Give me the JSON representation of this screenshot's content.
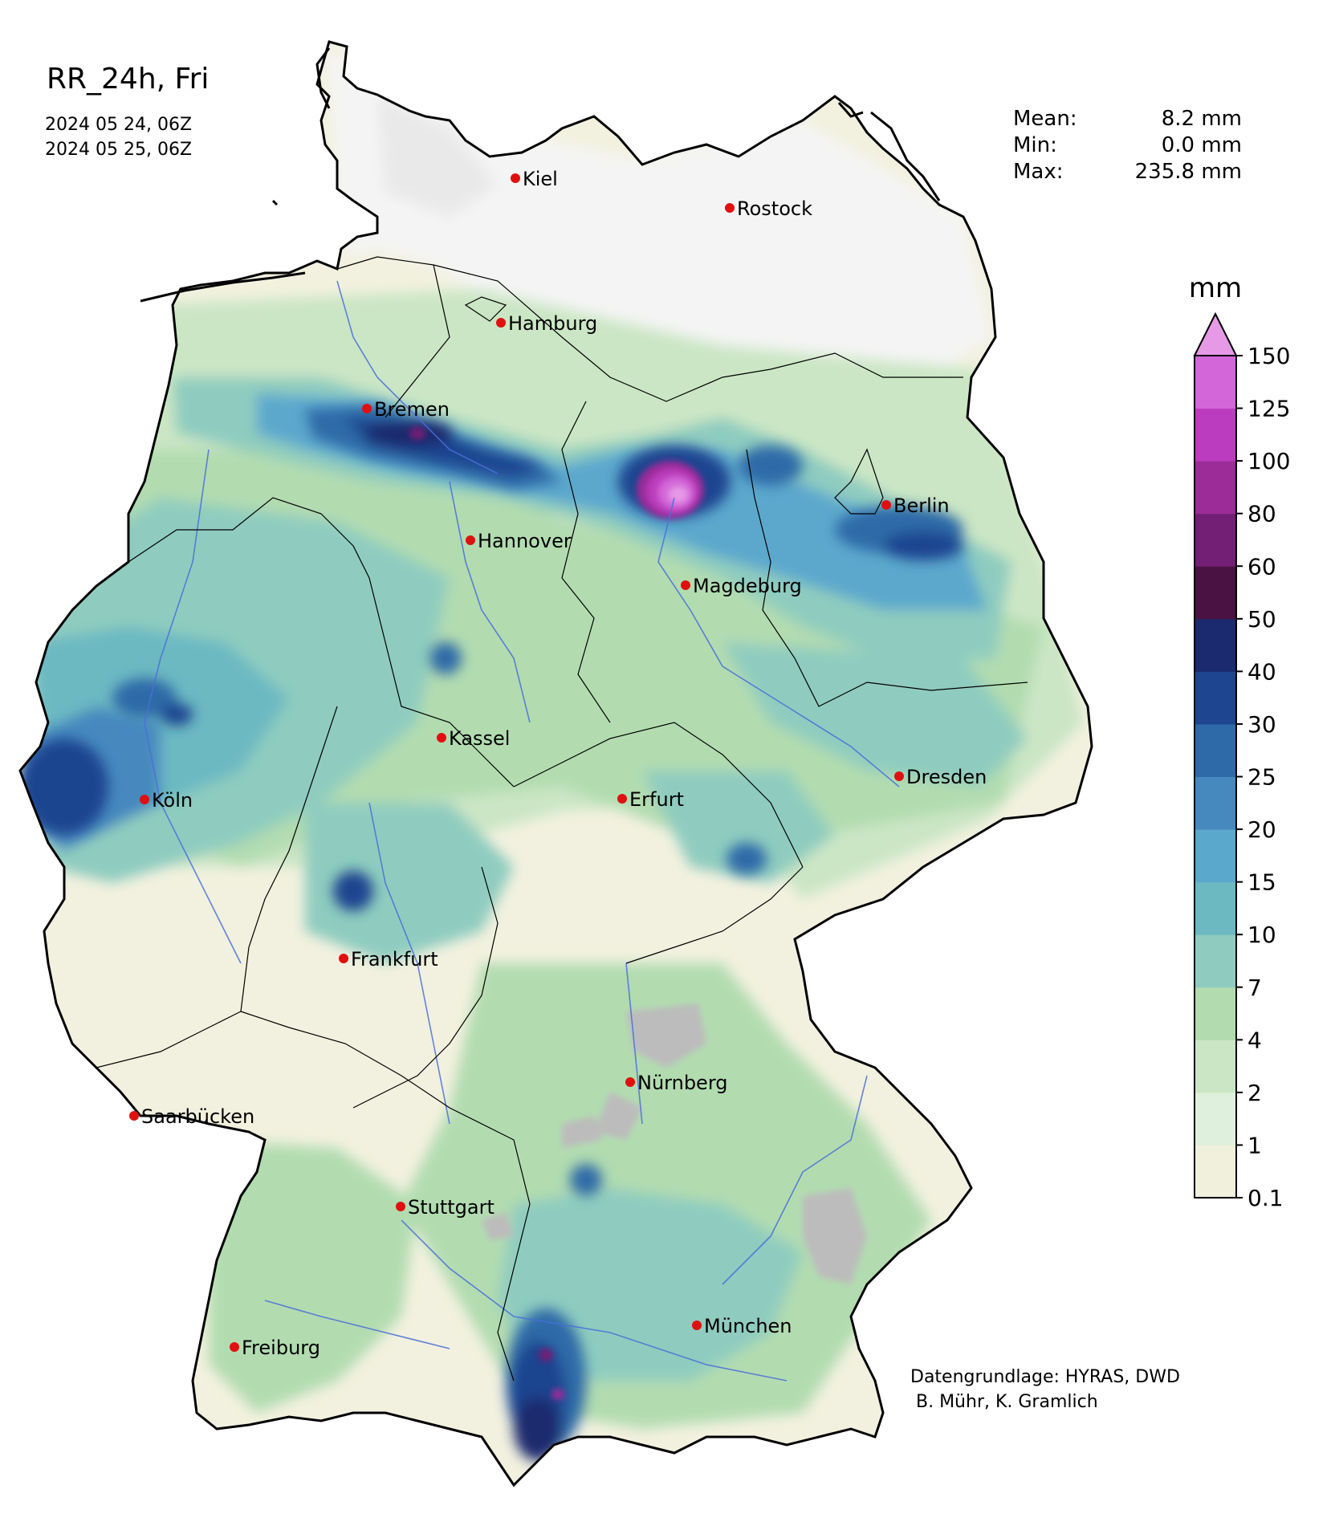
{
  "header": {
    "title": "RR_24h, Fri",
    "start_time": "2024 05 24, 06Z",
    "end_time": "2024 05 25, 06Z"
  },
  "stats": {
    "mean_label": "Mean:",
    "mean_value": "8.2 mm",
    "min_label": "Min:",
    "min_value": "0.0 mm",
    "max_label": "Max:",
    "max_value": "235.8 mm"
  },
  "legend": {
    "unit": "mm",
    "levels": [
      "0.1",
      "1",
      "2",
      "4",
      "7",
      "10",
      "15",
      "20",
      "25",
      "30",
      "40",
      "50",
      "60",
      "80",
      "100",
      "125",
      "150"
    ],
    "colors": [
      "#f0f0dd",
      "#dff0dc",
      "#cbe6c4",
      "#b2dcb0",
      "#8fccbf",
      "#6cb9c2",
      "#5ba8cd",
      "#4689bf",
      "#2f6aa8",
      "#1d4590",
      "#1b2a6e",
      "#4a1242",
      "#731f75",
      "#9b2c98",
      "#bb3cbe",
      "#d367d9",
      "#e69ae6"
    ]
  },
  "cities": [
    {
      "name": "Kiel"
    },
    {
      "name": "Rostock"
    },
    {
      "name": "Hamburg"
    },
    {
      "name": "Bremen"
    },
    {
      "name": "Berlin"
    },
    {
      "name": "Hannover"
    },
    {
      "name": "Magdeburg"
    },
    {
      "name": "Kassel"
    },
    {
      "name": "Dresden"
    },
    {
      "name": "Köln"
    },
    {
      "name": "Erfurt"
    },
    {
      "name": "Frankfurt"
    },
    {
      "name": "Nürnberg"
    },
    {
      "name": "Saarbücken"
    },
    {
      "name": "Stuttgart"
    },
    {
      "name": "München"
    },
    {
      "name": "Freiburg"
    }
  ],
  "credit": "Datengrundlage: HYRAS, DWD\n B. Mühr, K. Gramlich"
}
